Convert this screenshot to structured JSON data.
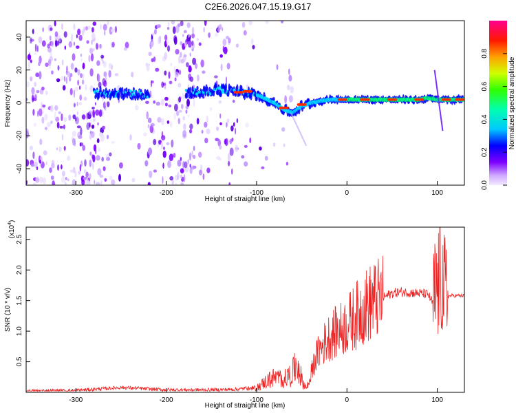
{
  "figure_title": "C2E6.2026.047.15.19.G17",
  "chart_data": [
    {
      "type": "heatmap",
      "title": "C2E6.2026.047.15.19.G17",
      "xlabel": "Height of straight line (km)",
      "ylabel": "Frequency (Hz)",
      "xlim": [
        -355,
        130
      ],
      "ylim": [
        -50,
        50
      ],
      "xticks": [
        -300,
        -200,
        -100,
        0,
        100
      ],
      "yticks": [
        -40,
        -20,
        0,
        20,
        40
      ],
      "colorbar": {
        "label": "Normalized spectral amplitude",
        "range": [
          0.0,
          1.0
        ],
        "ticks": [
          0.0,
          0.2,
          0.4,
          0.6,
          0.8
        ],
        "colors": [
          "#e6d4ff",
          "#7d00ff",
          "#0000ff",
          "#00e0ff",
          "#00ff60",
          "#f0ff00",
          "#ff6000",
          "#ff0000",
          "#ff0090"
        ]
      },
      "ridge": {
        "x": [
          -280,
          -260,
          -240,
          -220,
          -200,
          -180,
          -160,
          -140,
          -120,
          -100,
          -80,
          -70,
          -60,
          -50,
          -40,
          -30,
          -20,
          -10,
          0,
          20,
          40,
          60,
          80,
          90,
          100,
          110,
          130
        ],
        "y": [
          6,
          5,
          6,
          5,
          4,
          6,
          7,
          8,
          7,
          5,
          0,
          -4,
          -6,
          -2,
          0,
          1,
          2,
          2,
          2,
          2,
          2,
          2,
          2,
          3,
          2,
          2,
          2
        ]
      }
    },
    {
      "type": "line",
      "xlabel": "Height of straight line (km)",
      "ylabel": "SNR (10 * v/v)",
      "y_multiplier": "(x10^4)",
      "y_multiplier_base": "(x10",
      "y_multiplier_exp": "4",
      "xlim": [
        -355,
        130
      ],
      "ylim": [
        0,
        2.7
      ],
      "xticks": [
        -300,
        -200,
        -100,
        0,
        100
      ],
      "yticks": [
        0.5,
        1.0,
        1.5,
        2.0,
        2.5
      ],
      "ytick_labels": [
        "0.5",
        "1.0",
        "1.5",
        "2.0",
        "2.5"
      ],
      "color": "#ee2222",
      "x": [
        -355,
        -300,
        -250,
        -200,
        -150,
        -120,
        -100,
        -90,
        -80,
        -70,
        -60,
        -55,
        -50,
        -45,
        -40,
        -35,
        -30,
        -20,
        -10,
        0,
        10,
        20,
        30,
        40,
        50,
        60,
        70,
        80,
        90,
        95,
        100,
        105,
        108,
        110,
        115,
        120,
        130
      ],
      "y": [
        0.02,
        0.03,
        0.08,
        0.04,
        0.04,
        0.05,
        0.1,
        0.25,
        0.35,
        0.3,
        0.45,
        0.7,
        0.3,
        0.1,
        0.3,
        0.55,
        0.7,
        0.9,
        1.0,
        1.1,
        1.25,
        1.4,
        1.5,
        1.55,
        1.62,
        1.64,
        1.63,
        1.62,
        1.6,
        1.45,
        1.7,
        1.9,
        1.6,
        1.55,
        1.58,
        1.58,
        1.58
      ]
    }
  ]
}
